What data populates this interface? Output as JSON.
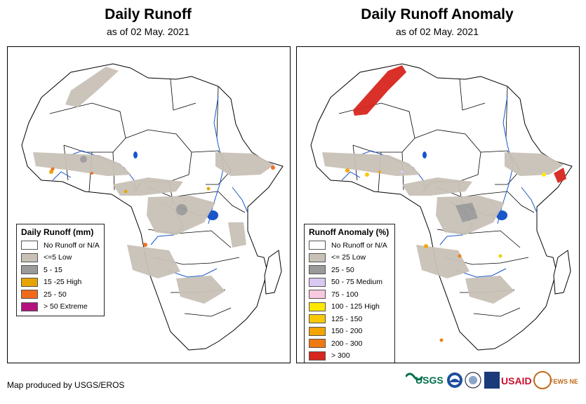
{
  "left_panel": {
    "title": "Daily Runoff",
    "subtitle": "as of 02 May. 2021",
    "legend": {
      "title": "Daily Runoff (mm)",
      "items": [
        {
          "label": "No Runoff or N/A",
          "color": "#ffffff"
        },
        {
          "label": "<=5 Low",
          "color": "#c9c1b7"
        },
        {
          "label": "5 - 15",
          "color": "#9a9a9a"
        },
        {
          "label": "15 -25 High",
          "color": "#e6a400"
        },
        {
          "label": "25 - 50",
          "color": "#f06a1a"
        },
        {
          "label": "> 50 Extreme",
          "color": "#b3127f"
        }
      ]
    }
  },
  "right_panel": {
    "title": "Daily Runoff Anomaly",
    "subtitle": "as of 02 May. 2021",
    "legend": {
      "title": "Runoff Anomaly (%)",
      "items": [
        {
          "label": "No Runoff or N/A",
          "color": "#ffffff"
        },
        {
          "label": "<= 25 Low",
          "color": "#c9c1b7"
        },
        {
          "label": "25 - 50",
          "color": "#9a9a9a"
        },
        {
          "label": "50 - 75 Medium",
          "color": "#d9c8f0"
        },
        {
          "label": "75 - 100",
          "color": "#f7c9df"
        },
        {
          "label": "100 - 125 High",
          "color": "#ffe800"
        },
        {
          "label": "125 - 150",
          "color": "#f8c800"
        },
        {
          "label": "150 - 200",
          "color": "#f4a300"
        },
        {
          "label": "200 - 300",
          "color": "#ee7a10"
        },
        {
          "label": "> 300",
          "color": "#d7261e"
        }
      ]
    }
  },
  "footer": {
    "credit": "Map produced by USGS/EROS"
  },
  "logos": {
    "usgs": "USGS",
    "usaid": "USAID",
    "fewsnet": "FEWS NET"
  },
  "colors": {
    "river": "#1a56c9",
    "lake": "#1a56c9",
    "border": "#000000"
  }
}
